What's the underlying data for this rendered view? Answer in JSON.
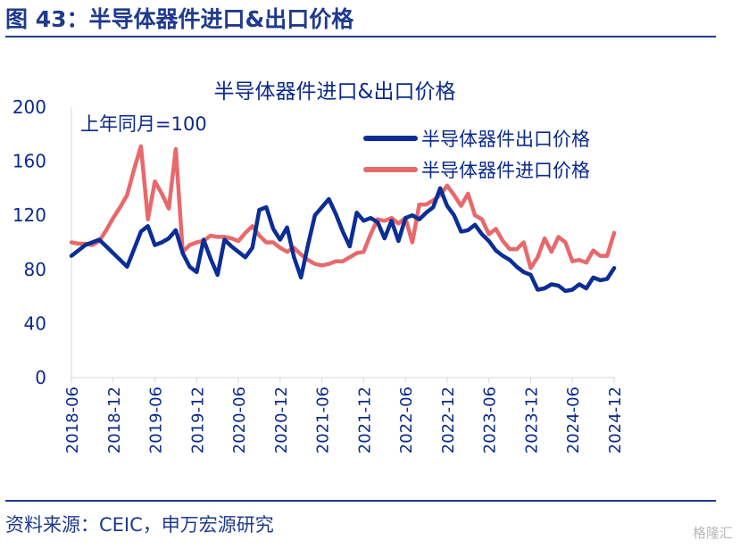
{
  "figure_title": "图 43：半导体器件进口&出口价格",
  "source": "资料来源：CEIC，申万宏源研究",
  "watermark": "格隆汇",
  "colors": {
    "export": "#0b2d96",
    "import": "#e8696b",
    "text": "#1f3a8f"
  },
  "chart_data": {
    "type": "line",
    "title": "半导体器件进口&出口价格",
    "annotation": "上年同月=100",
    "xlabel": "",
    "ylabel": "",
    "ylim": [
      0,
      200
    ],
    "yticks": [
      0,
      40,
      80,
      120,
      160,
      200
    ],
    "xticks": [
      "2018-06",
      "2018-12",
      "2019-06",
      "2019-12",
      "2020-06",
      "2020-12",
      "2021-06",
      "2021-12",
      "2022-06",
      "2022-12",
      "2023-06",
      "2023-12",
      "2024-06",
      "2024-12"
    ],
    "grid": false,
    "legend_position": "top-right",
    "x": [
      "2018-06",
      "2018-07",
      "2018-08",
      "2018-09",
      "2018-10",
      "2018-11",
      "2018-12",
      "2019-01",
      "2019-02",
      "2019-03",
      "2019-04",
      "2019-05",
      "2019-06",
      "2019-07",
      "2019-08",
      "2019-09",
      "2019-10",
      "2019-11",
      "2019-12",
      "2020-01",
      "2020-02",
      "2020-03",
      "2020-04",
      "2020-05",
      "2020-06",
      "2020-07",
      "2020-08",
      "2020-09",
      "2020-10",
      "2020-11",
      "2020-12",
      "2021-01",
      "2021-02",
      "2021-03",
      "2021-04",
      "2021-05",
      "2021-06",
      "2021-07",
      "2021-08",
      "2021-09",
      "2021-10",
      "2021-11",
      "2021-12",
      "2022-01",
      "2022-02",
      "2022-03",
      "2022-04",
      "2022-05",
      "2022-06",
      "2022-07",
      "2022-08",
      "2022-09",
      "2022-10",
      "2022-11",
      "2022-12",
      "2023-01",
      "2023-02",
      "2023-03",
      "2023-04",
      "2023-05",
      "2023-06",
      "2023-07",
      "2023-08",
      "2023-09",
      "2023-10",
      "2023-11",
      "2023-12",
      "2024-01",
      "2024-02",
      "2024-03",
      "2024-04",
      "2024-05",
      "2024-06",
      "2024-07",
      "2024-08",
      "2024-09",
      "2024-10",
      "2024-11",
      "2024-12"
    ],
    "series": [
      {
        "name": "半导体器件出口价格",
        "key": "export",
        "values": [
          90,
          94,
          98,
          100,
          102,
          97,
          92,
          87,
          82,
          95,
          108,
          112,
          98,
          100,
          103,
          109,
          92,
          82,
          78,
          102,
          88,
          76,
          102,
          97,
          93,
          89,
          96,
          124,
          126,
          110,
          102,
          111,
          89,
          74,
          98,
          120,
          126,
          132,
          121,
          108,
          97,
          122,
          116,
          118,
          115,
          103,
          116,
          101,
          118,
          120,
          117,
          122,
          126,
          140,
          127,
          120,
          108,
          109,
          113,
          106,
          101,
          94,
          90,
          87,
          82,
          78,
          76,
          65,
          66,
          69,
          68,
          64,
          65,
          69,
          66,
          74,
          72,
          73,
          81
        ]
      },
      {
        "name": "半导体器件进口价格",
        "key": "import",
        "values": [
          100,
          99,
          99,
          98,
          101,
          109,
          118,
          126,
          135,
          154,
          171,
          117,
          145,
          136,
          125,
          169,
          93,
          98,
          100,
          101,
          105,
          104,
          104,
          103,
          101,
          107,
          112,
          105,
          100,
          100,
          96,
          93,
          96,
          91,
          87,
          84,
          83,
          84,
          86,
          86,
          89,
          92,
          93,
          106,
          117,
          116,
          118,
          114,
          118,
          100,
          128,
          128,
          131,
          135,
          142,
          135,
          127,
          136,
          120,
          117,
          106,
          110,
          101,
          95,
          95,
          100,
          81,
          89,
          103,
          93,
          104,
          100,
          86,
          87,
          85,
          94,
          90,
          90,
          107
        ]
      }
    ]
  }
}
